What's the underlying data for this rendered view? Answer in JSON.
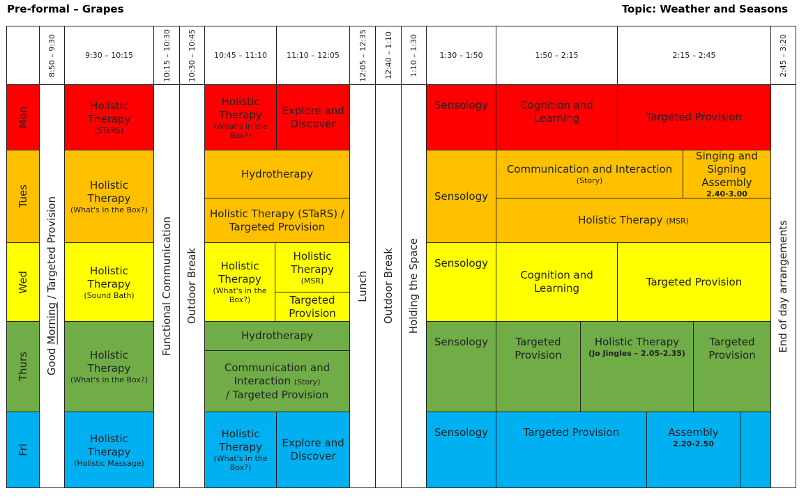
{
  "header": {
    "title": "Pre-formal – Grapes",
    "topic": "Topic: Weather and Seasons"
  },
  "times": [
    "8:50 – 9:30",
    "9:30 – 10:15",
    "10:15 – 10:30",
    "10:30 – 10:45",
    "10:45 – 11:10",
    "11:10 – 12:05",
    "12:05 – 12:35",
    "12:40 – 1:10",
    "1:10 – 1:30",
    "1:30 – 1:50",
    "1:50 – 2:15",
    "2:15 – 2:45",
    "2:45 – 3:20"
  ],
  "days": [
    "Mon",
    "Tues",
    "Wed",
    "Thurs",
    "Fri"
  ],
  "spanning": {
    "good_morning": [
      "Good",
      "Morning",
      "/ Targeted Provision"
    ],
    "functional": "Functional Communication",
    "break1": "Outdoor Break",
    "lunch": "Lunch",
    "break2": "Outdoor Break",
    "holding": "Holding the Space",
    "end": "End of day arrangements"
  },
  "schedule": {
    "mon": [
      {
        "title": "Holistic Therapy",
        "note": "(STaRS)"
      },
      {
        "title": "Holistic Therapy",
        "note": "(What's in the Box?)"
      },
      {
        "title": "Explore and Discover"
      },
      {
        "title": "Sensology"
      },
      {
        "title": "Cognition and Learning"
      },
      {
        "title": "Targeted Provision"
      }
    ],
    "tues": [
      {
        "title": "Holistic Therapy",
        "note": "(What's in the Box?)"
      },
      {
        "title": "Hydrotherapy"
      },
      {
        "title": "Holistic Therapy (STaRS) / Targeted Provision"
      },
      {
        "title": "Sensology"
      },
      {
        "title": "Communication and Interaction",
        "note": "(Story)"
      },
      {
        "title": "Singing and Signing Assembly",
        "time": "2.40-3.00"
      },
      {
        "title": "Holistic Therapy",
        "note": "(MSR)"
      }
    ],
    "wed": [
      {
        "title": "Holistic Therapy",
        "note": "(Sound Bath)"
      },
      {
        "title": "Holistic Therapy",
        "note": "(What's in the Box?)"
      },
      {
        "title": "Holistic Therapy",
        "note": "(MSR)"
      },
      {
        "title": "Targeted Provision"
      },
      {
        "title": "Sensology"
      },
      {
        "title": "Cognition and Learning"
      },
      {
        "title": "Targeted Provision"
      }
    ],
    "thurs": [
      {
        "title": "Holistic Therapy",
        "note": "(What's in the Box?)"
      },
      {
        "title": "Hydrotherapy"
      },
      {
        "title": "Communication and Interaction",
        "note": "(Story)",
        "tail": "/ Targeted Provision"
      },
      {
        "title": "Sensology"
      },
      {
        "title": "Targeted Provision"
      },
      {
        "title": "Holistic Therapy",
        "time": "(Jo Jingles – 2.05-2.35)"
      },
      {
        "title": "Targeted Provision"
      }
    ],
    "fri": [
      {
        "title": "Holistic Therapy",
        "note": "(Holistic Massage)"
      },
      {
        "title": "Holistic Therapy",
        "note": "(What's in the Box?)"
      },
      {
        "title": "Explore and Discover"
      },
      {
        "title": "Sensology"
      },
      {
        "title": "Targeted Provision"
      },
      {
        "title": "Assembly",
        "time": "2.20-2.50"
      }
    ]
  }
}
